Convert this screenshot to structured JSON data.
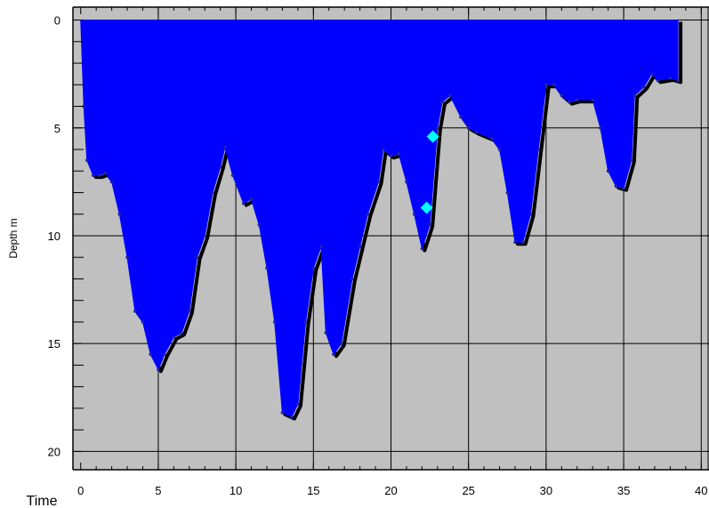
{
  "chart_data": {
    "type": "area",
    "title": "",
    "xlabel": "Time",
    "ylabel": "Depth m",
    "xlim": [
      -0.5,
      40.5
    ],
    "ylim": [
      -0.6,
      20.85
    ],
    "y_inverted": true,
    "x_ticks": [
      0,
      5,
      10,
      15,
      20,
      25,
      30,
      35,
      40
    ],
    "y_ticks": [
      0,
      5,
      10,
      15,
      20
    ],
    "grid": true,
    "colors": {
      "fill": "#0000ff",
      "outline": "#000000",
      "points": "#2222aa",
      "markers": "#00ffff",
      "background": "#c0c0c0"
    },
    "series": [
      {
        "values": [
          [
            0,
            0
          ],
          [
            0.2,
            4.0
          ],
          [
            0.4,
            6.5
          ],
          [
            0.8,
            7.2
          ],
          [
            1.2,
            7.2
          ],
          [
            1.6,
            7.1
          ],
          [
            2.0,
            7.5
          ],
          [
            2.5,
            9.0
          ],
          [
            3.0,
            11.0
          ],
          [
            3.5,
            13.5
          ],
          [
            4.0,
            14.0
          ],
          [
            4.5,
            15.5
          ],
          [
            5.0,
            16.2
          ],
          [
            5.4,
            15.5
          ],
          [
            6.0,
            14.7
          ],
          [
            6.5,
            14.5
          ],
          [
            7.0,
            13.5
          ],
          [
            7.5,
            11.0
          ],
          [
            8.0,
            10.0
          ],
          [
            8.5,
            8.0
          ],
          [
            9.0,
            6.8
          ],
          [
            9.3,
            5.9
          ],
          [
            9.8,
            7.2
          ],
          [
            10.5,
            8.5
          ],
          [
            11.0,
            8.3
          ],
          [
            11.5,
            9.5
          ],
          [
            12.0,
            11.5
          ],
          [
            12.5,
            14.0
          ],
          [
            13.0,
            18.2
          ],
          [
            13.6,
            18.4
          ],
          [
            14.0,
            17.8
          ],
          [
            14.5,
            14.0
          ],
          [
            15.0,
            11.5
          ],
          [
            15.5,
            10.5
          ],
          [
            15.8,
            14.5
          ],
          [
            16.3,
            15.5
          ],
          [
            16.8,
            15.0
          ],
          [
            17.5,
            12.0
          ],
          [
            18.0,
            10.5
          ],
          [
            18.5,
            9.0
          ],
          [
            19.2,
            7.5
          ],
          [
            19.5,
            6.0
          ],
          [
            20.0,
            6.3
          ],
          [
            20.5,
            6.2
          ],
          [
            21.0,
            7.5
          ],
          [
            21.5,
            9.0
          ],
          [
            22.0,
            10.6
          ],
          [
            22.5,
            9.5
          ],
          [
            23.0,
            5.0
          ],
          [
            23.3,
            3.8
          ],
          [
            23.8,
            3.5
          ],
          [
            24.5,
            4.5
          ],
          [
            25.0,
            5.0
          ],
          [
            25.5,
            5.2
          ],
          [
            26.5,
            5.5
          ],
          [
            27.0,
            6.0
          ],
          [
            27.5,
            8.0
          ],
          [
            28.0,
            10.3
          ],
          [
            28.5,
            10.3
          ],
          [
            29.0,
            9.0
          ],
          [
            29.5,
            6.0
          ],
          [
            30.0,
            3.0
          ],
          [
            30.5,
            3.0
          ],
          [
            31.0,
            3.5
          ],
          [
            31.5,
            3.8
          ],
          [
            32.0,
            3.7
          ],
          [
            33.0,
            3.7
          ],
          [
            33.5,
            5.0
          ],
          [
            34.0,
            7.0
          ],
          [
            34.5,
            7.7
          ],
          [
            35.0,
            7.8
          ],
          [
            35.5,
            6.5
          ],
          [
            35.7,
            3.5
          ],
          [
            36.3,
            3.1
          ],
          [
            36.8,
            2.5
          ],
          [
            37.2,
            2.8
          ],
          [
            38.0,
            2.7
          ],
          [
            38.5,
            2.8
          ],
          [
            38.5,
            0
          ]
        ]
      }
    ],
    "markers": [
      [
        22.7,
        5.4
      ],
      [
        22.3,
        8.7
      ]
    ]
  }
}
